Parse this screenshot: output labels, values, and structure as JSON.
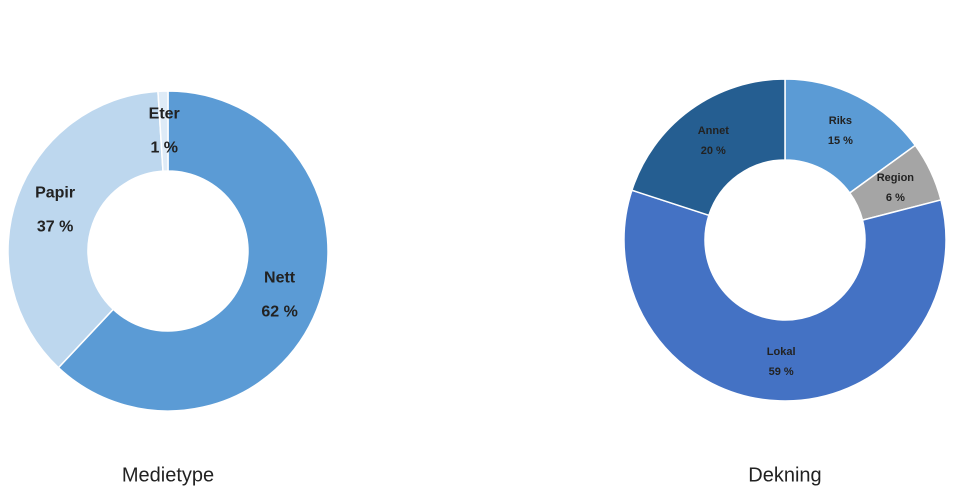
{
  "chart_data": [
    {
      "type": "pie",
      "donut": true,
      "title": "Medietype",
      "categories": [
        "Nett",
        "Papir",
        "Eter"
      ],
      "values": [
        62,
        37,
        1
      ],
      "value_labels": [
        "62 %",
        "37 %",
        "1 %"
      ],
      "colors": [
        "#5b9bd5",
        "#bdd7ee",
        "#deebf7"
      ]
    },
    {
      "type": "pie",
      "donut": true,
      "title": "Dekning",
      "categories": [
        "Riks",
        "Region",
        "Lokal",
        "Annet"
      ],
      "values": [
        15,
        6,
        59,
        20
      ],
      "value_labels": [
        "15 %",
        "6 %",
        "59 %",
        "20 %"
      ],
      "colors": [
        "#5b9bd5",
        "#a5a5a5",
        "#4472c4",
        "#255e91"
      ]
    }
  ]
}
